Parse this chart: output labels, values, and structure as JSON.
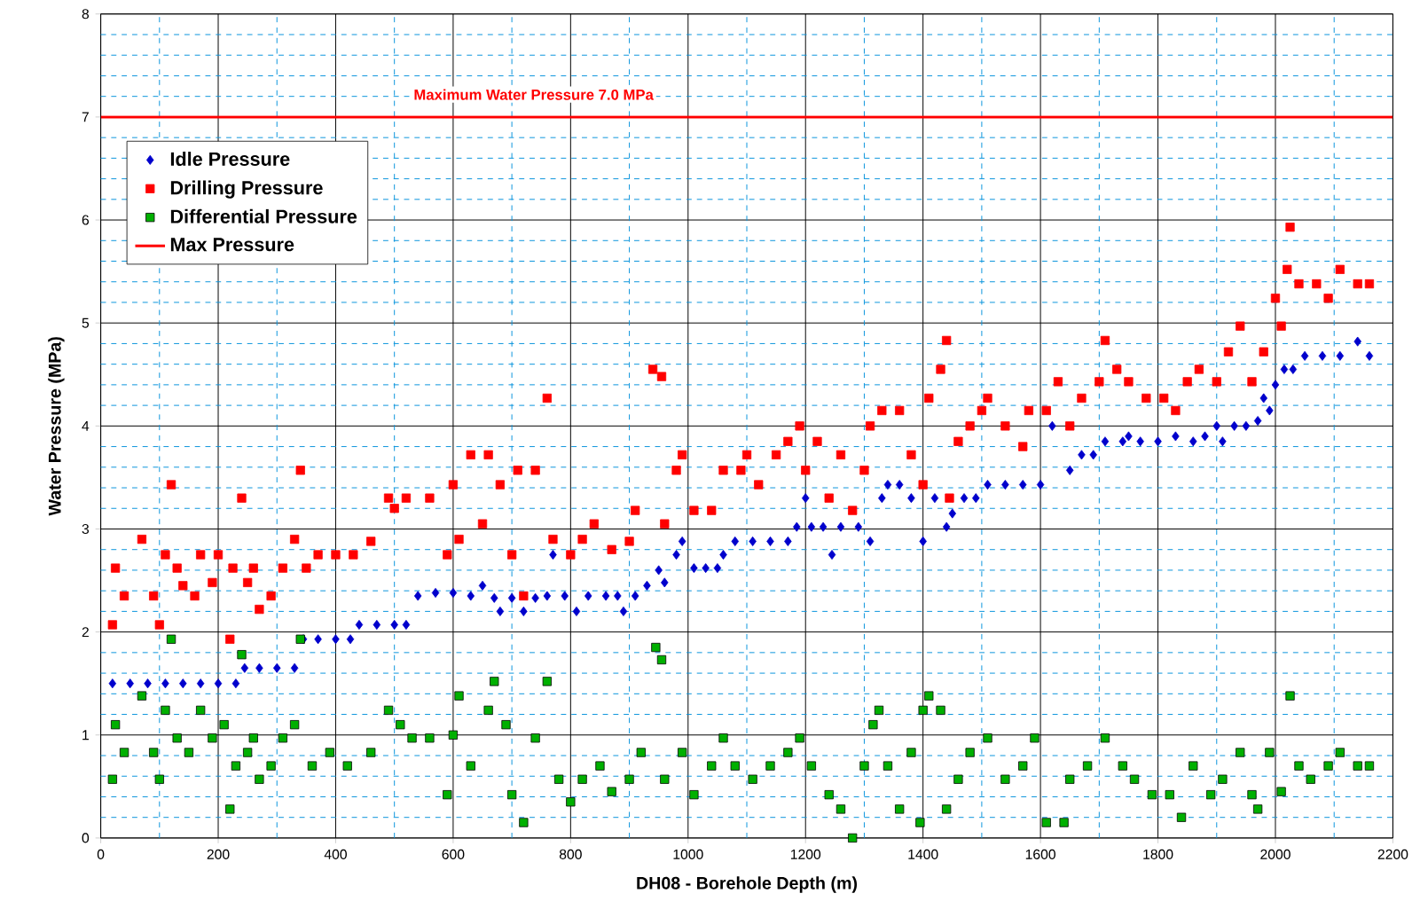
{
  "chart_data": {
    "type": "scatter",
    "xlabel": "DH08 - Borehole Depth (m)",
    "ylabel": "Water Pressure (MPa)",
    "xlim": [
      0,
      2200
    ],
    "ylim": [
      0,
      8
    ],
    "xticks": [
      0,
      {
        "value": 100,
        "label": null
      },
      200,
      {
        "value": 300,
        "label": null
      },
      400,
      {
        "value": 500,
        "label": null
      },
      600,
      {
        "value": 700,
        "label": null
      },
      800,
      {
        "value": 900,
        "label": null
      },
      1000,
      {
        "value": 1100,
        "label": null
      },
      1200,
      {
        "value": 1300,
        "label": null
      },
      1400,
      {
        "value": 1500,
        "label": null
      },
      1600,
      {
        "value": 1700,
        "label": null
      },
      1800,
      {
        "value": 1900,
        "label": null
      },
      2000,
      {
        "value": 2100,
        "label": null
      },
      2200
    ],
    "yticks": [
      0,
      {
        "value": 0.2,
        "label": null
      },
      {
        "value": 0.4,
        "label": null
      },
      {
        "value": 0.6,
        "label": null
      },
      {
        "value": 0.8,
        "label": null
      },
      1,
      {
        "value": 1.2,
        "label": null
      },
      {
        "value": 1.4,
        "label": null
      },
      {
        "value": 1.6,
        "label": null
      },
      {
        "value": 1.8,
        "label": null
      },
      2,
      {
        "value": 2.2,
        "label": null
      },
      {
        "value": 2.4,
        "label": null
      },
      {
        "value": 2.6,
        "label": null
      },
      {
        "value": 2.8,
        "label": null
      },
      3,
      {
        "value": 3.2,
        "label": null
      },
      {
        "value": 3.4,
        "label": null
      },
      {
        "value": 3.6,
        "label": null
      },
      {
        "value": 3.8,
        "label": null
      },
      4,
      {
        "value": 4.2,
        "label": null
      },
      {
        "value": 4.4,
        "label": null
      },
      {
        "value": 4.6,
        "label": null
      },
      {
        "value": 4.8,
        "label": null
      },
      5,
      {
        "value": 5.2,
        "label": null
      },
      {
        "value": 5.4,
        "label": null
      },
      {
        "value": 5.6,
        "label": null
      },
      {
        "value": 5.8,
        "label": null
      },
      6,
      {
        "value": 6.2,
        "label": null
      },
      {
        "value": 6.4,
        "label": null
      },
      {
        "value": 6.6,
        "label": null
      },
      {
        "value": 6.8,
        "label": null
      },
      7,
      {
        "value": 7.2,
        "label": null
      },
      {
        "value": 7.4,
        "label": null
      },
      {
        "value": 7.6,
        "label": null
      },
      {
        "value": 7.8,
        "label": null
      },
      8
    ],
    "grid": true,
    "legend": "top left",
    "annotations": [
      "Maximum Water Pressure 7.0 MPa"
    ],
    "series": [
      {
        "name": "Idle Pressure",
        "color": "#0000cc",
        "marker": "diamond",
        "x": [
          20,
          50,
          80,
          110,
          140,
          170,
          200,
          230,
          245,
          270,
          300,
          330,
          345,
          370,
          400,
          425,
          440,
          470,
          500,
          520,
          540,
          570,
          600,
          630,
          650,
          670,
          680,
          700,
          720,
          740,
          760,
          770,
          790,
          810,
          830,
          860,
          880,
          890,
          910,
          930,
          950,
          960,
          980,
          990,
          1010,
          1030,
          1050,
          1060,
          1080,
          1110,
          1140,
          1170,
          1185,
          1200,
          1210,
          1230,
          1245,
          1260,
          1290,
          1310,
          1330,
          1340,
          1360,
          1380,
          1400,
          1420,
          1440,
          1450,
          1470,
          1490,
          1510,
          1540,
          1570,
          1600,
          1620,
          1650,
          1670,
          1690,
          1710,
          1740,
          1750,
          1770,
          1800,
          1830,
          1860,
          1880,
          1900,
          1910,
          1930,
          1950,
          1970,
          1980,
          1990,
          2000,
          2015,
          2030,
          2050,
          2080,
          2110,
          2140,
          2160
        ],
        "values": [
          1.5,
          1.5,
          1.5,
          1.5,
          1.5,
          1.5,
          1.5,
          1.5,
          1.65,
          1.65,
          1.65,
          1.65,
          1.93,
          1.93,
          1.93,
          1.93,
          2.07,
          2.07,
          2.07,
          2.07,
          2.35,
          2.38,
          2.38,
          2.35,
          2.45,
          2.33,
          2.2,
          2.33,
          2.2,
          2.33,
          2.35,
          2.75,
          2.35,
          2.2,
          2.35,
          2.35,
          2.35,
          2.2,
          2.35,
          2.45,
          2.6,
          2.48,
          2.75,
          2.88,
          2.62,
          2.62,
          2.62,
          2.75,
          2.88,
          2.88,
          2.88,
          2.88,
          3.02,
          3.3,
          3.02,
          3.02,
          2.75,
          3.02,
          3.02,
          2.88,
          3.3,
          3.43,
          3.43,
          3.3,
          2.88,
          3.3,
          3.02,
          3.15,
          3.3,
          3.3,
          3.43,
          3.43,
          3.43,
          3.43,
          4.0,
          3.57,
          3.72,
          3.72,
          3.85,
          3.85,
          3.9,
          3.85,
          3.85,
          3.9,
          3.85,
          3.9,
          4.0,
          3.85,
          4.0,
          4.0,
          4.05,
          4.27,
          4.15,
          4.4,
          4.55,
          4.55,
          4.68,
          4.68,
          4.68,
          4.82,
          4.68
        ]
      },
      {
        "name": "Drilling Pressure",
        "color": "#ff0000",
        "marker": "square",
        "x": [
          20,
          25,
          40,
          70,
          90,
          100,
          110,
          120,
          130,
          140,
          160,
          170,
          190,
          200,
          220,
          225,
          240,
          250,
          260,
          270,
          290,
          310,
          330,
          340,
          350,
          370,
          400,
          430,
          460,
          490,
          500,
          520,
          560,
          590,
          600,
          610,
          630,
          650,
          660,
          680,
          700,
          710,
          720,
          740,
          760,
          770,
          800,
          820,
          840,
          870,
          900,
          910,
          940,
          955,
          960,
          980,
          990,
          1010,
          1040,
          1060,
          1090,
          1100,
          1120,
          1150,
          1170,
          1190,
          1200,
          1220,
          1240,
          1260,
          1280,
          1300,
          1310,
          1330,
          1360,
          1380,
          1400,
          1410,
          1430,
          1440,
          1445,
          1460,
          1480,
          1500,
          1510,
          1540,
          1570,
          1580,
          1610,
          1630,
          1650,
          1670,
          1700,
          1710,
          1730,
          1750,
          1780,
          1810,
          1830,
          1850,
          1870,
          1900,
          1920,
          1940,
          1960,
          1980,
          2000,
          2010,
          2020,
          2025,
          2040,
          2070,
          2090,
          2110,
          2140,
          2160
        ],
        "values": [
          2.07,
          2.62,
          2.35,
          2.9,
          2.35,
          2.07,
          2.75,
          3.43,
          2.62,
          2.45,
          2.35,
          2.75,
          2.48,
          2.75,
          1.93,
          2.62,
          3.3,
          2.48,
          2.62,
          2.22,
          2.35,
          2.62,
          2.9,
          3.57,
          2.62,
          2.75,
          2.75,
          2.75,
          2.88,
          3.3,
          3.2,
          3.3,
          3.3,
          2.75,
          3.43,
          2.9,
          3.72,
          3.05,
          3.72,
          3.43,
          2.75,
          3.57,
          2.35,
          3.57,
          4.27,
          2.9,
          2.75,
          2.9,
          3.05,
          2.8,
          2.88,
          3.18,
          4.55,
          4.48,
          3.05,
          3.57,
          3.72,
          3.18,
          3.18,
          3.57,
          3.57,
          3.72,
          3.43,
          3.72,
          3.85,
          4.0,
          3.57,
          3.85,
          3.3,
          3.72,
          3.18,
          3.57,
          4.0,
          4.15,
          4.15,
          3.72,
          3.43,
          4.27,
          4.55,
          4.83,
          3.3,
          3.85,
          4.0,
          4.15,
          4.27,
          4.0,
          3.8,
          4.15,
          4.15,
          4.43,
          4.0,
          4.27,
          4.43,
          4.83,
          4.55,
          4.43,
          4.27,
          4.27,
          4.15,
          4.43,
          4.55,
          4.43,
          4.72,
          4.97,
          4.43,
          4.72,
          5.24,
          4.97,
          5.52,
          5.93,
          5.38,
          5.38,
          5.24,
          5.52,
          5.38,
          5.38
        ]
      },
      {
        "name": "Differential Pressure",
        "color": "#00b000",
        "marker": "square",
        "x": [
          20,
          25,
          40,
          70,
          90,
          100,
          110,
          120,
          130,
          150,
          170,
          190,
          210,
          220,
          230,
          240,
          250,
          260,
          270,
          290,
          310,
          330,
          340,
          360,
          390,
          420,
          460,
          490,
          510,
          530,
          560,
          590,
          600,
          610,
          630,
          660,
          670,
          690,
          700,
          720,
          740,
          760,
          780,
          800,
          820,
          850,
          870,
          900,
          920,
          945,
          955,
          960,
          990,
          1010,
          1040,
          1060,
          1080,
          1110,
          1140,
          1170,
          1190,
          1210,
          1240,
          1260,
          1280,
          1300,
          1315,
          1325,
          1340,
          1360,
          1380,
          1395,
          1400,
          1410,
          1430,
          1440,
          1460,
          1480,
          1510,
          1540,
          1570,
          1590,
          1610,
          1640,
          1650,
          1680,
          1710,
          1740,
          1760,
          1790,
          1820,
          1840,
          1860,
          1890,
          1910,
          1940,
          1960,
          1970,
          1990,
          2010,
          2025,
          2040,
          2060,
          2090,
          2110,
          2140,
          2160
        ],
        "values": [
          0.57,
          1.1,
          0.83,
          1.38,
          0.83,
          0.57,
          1.24,
          1.93,
          0.97,
          0.83,
          1.24,
          0.97,
          1.1,
          0.28,
          0.7,
          1.78,
          0.83,
          0.97,
          0.57,
          0.7,
          0.97,
          1.1,
          1.93,
          0.7,
          0.83,
          0.7,
          0.83,
          1.24,
          1.1,
          0.97,
          0.97,
          0.42,
          1.0,
          1.38,
          0.7,
          1.24,
          1.52,
          1.1,
          0.42,
          0.15,
          0.97,
          1.52,
          0.57,
          0.35,
          0.57,
          0.7,
          0.45,
          0.57,
          0.83,
          1.85,
          1.73,
          0.57,
          0.83,
          0.42,
          0.7,
          0.97,
          0.7,
          0.57,
          0.7,
          0.83,
          0.97,
          0.7,
          0.42,
          0.28,
          0.0,
          0.7,
          1.1,
          1.24,
          0.7,
          0.28,
          0.83,
          0.15,
          1.24,
          1.38,
          1.24,
          0.28,
          0.57,
          0.83,
          0.97,
          0.57,
          0.7,
          0.97,
          0.15,
          0.15,
          0.57,
          0.7,
          0.97,
          0.7,
          0.57,
          0.42,
          0.42,
          0.2,
          0.7,
          0.42,
          0.57,
          0.83,
          0.42,
          0.28,
          0.83,
          0.45,
          1.38,
          0.7,
          0.57,
          0.7,
          0.83,
          0.7,
          0.7
        ]
      },
      {
        "name": "Max Pressure",
        "color": "#ff0000",
        "type": "line",
        "marker": "none",
        "x": [
          0,
          2200
        ],
        "values": [
          7,
          7
        ]
      }
    ]
  }
}
